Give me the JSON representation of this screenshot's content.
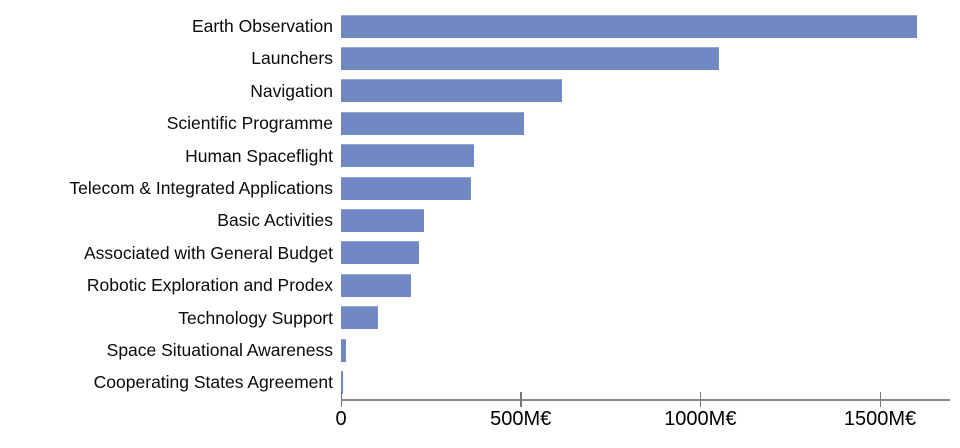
{
  "chart_data": {
    "type": "bar",
    "orientation": "horizontal",
    "title": "",
    "xlabel": "",
    "ylabel": "",
    "unit": "M€",
    "categories": [
      "Earth Observation",
      "Launchers",
      "Navigation",
      "Scientific Programme",
      "Human Spaceflight",
      "Telecom & Integrated Applications",
      "Basic Activities",
      "Associated with General Budget",
      "Robotic Exploration and Prodex",
      "Technology Support",
      "Space Situational Awareness",
      "Cooperating States Agreement"
    ],
    "values": [
      1604,
      1052,
      615,
      508,
      370,
      363,
      232,
      218,
      194,
      102,
      14,
      4
    ],
    "x_ticks": [
      {
        "value": 0,
        "label": "0"
      },
      {
        "value": 500,
        "label": "500M€"
      },
      {
        "value": 1000,
        "label": "1000M€"
      },
      {
        "value": 1500,
        "label": "1500M€"
      }
    ],
    "xlim": [
      0,
      1695
    ],
    "grid": false,
    "legend": false,
    "bar_color": "#7189c2",
    "axis_color": "#888888",
    "text_color": "#0a0a0a",
    "background": "#ffffff"
  }
}
